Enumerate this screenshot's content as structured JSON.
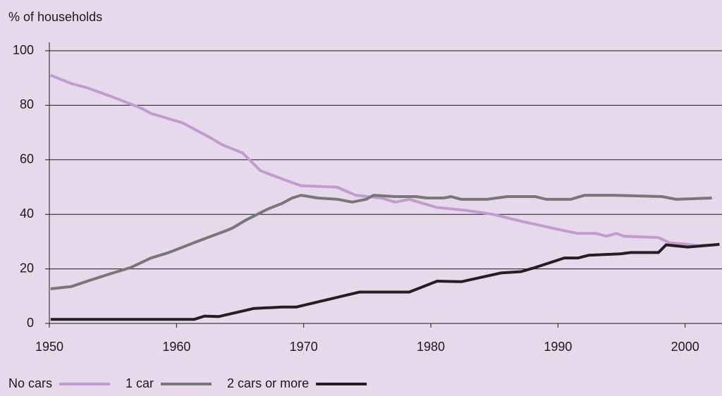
{
  "chart_data": {
    "type": "line",
    "y_axis_label": "% of households",
    "xlim": [
      1950,
      2002.9
    ],
    "xticks": [
      1950,
      1960,
      1970,
      1980,
      1990,
      2000
    ],
    "ylim": [
      0,
      100
    ],
    "yticks": [
      0,
      20,
      40,
      60,
      80,
      100
    ],
    "grid": true,
    "legend": "bottom-left",
    "series": [
      {
        "name": "No cars",
        "color": "#c39bd1",
        "x": [
          1950.1,
          1951.7,
          1952.9,
          1955,
          1957.2,
          1958,
          1960.5,
          1962.7,
          1963.6,
          1965.2,
          1966.6,
          1968.3,
          1969.8,
          1972.6,
          1974.1,
          1976.1,
          1977.2,
          1978.3,
          1979.4,
          1980.5,
          1982.7,
          1984.9,
          1987.1,
          1990.5,
          1991.6,
          1993,
          1993.8,
          1994.6,
          1995.2,
          1997.9,
          1998.8,
          2000.2,
          2001,
          2002.7
        ],
        "values": [
          91,
          88,
          86.5,
          83,
          79,
          77,
          73.5,
          68,
          65.5,
          62.5,
          56,
          53,
          50.5,
          50,
          47,
          46,
          44.5,
          45.5,
          44,
          42.5,
          41.5,
          40,
          37.5,
          34,
          33,
          33,
          32,
          33,
          32,
          31.5,
          29.5,
          29,
          28.5,
          29
        ]
      },
      {
        "name": "1 car",
        "color": "#777777",
        "x": [
          1950.1,
          1951.7,
          1953.3,
          1955,
          1956.4,
          1958,
          1959.4,
          1961.6,
          1963.9,
          1964.4,
          1965.5,
          1967.2,
          1968.3,
          1969.1,
          1969.8,
          1971.1,
          1972.7,
          1973.8,
          1974.9,
          1975.5,
          1977.2,
          1978.8,
          1979.7,
          1981,
          1981.6,
          1982.4,
          1984.4,
          1986,
          1988.2,
          1989.1,
          1991,
          1992.1,
          1994.3,
          1998.2,
          1999.3,
          2002.1
        ],
        "values": [
          12.7,
          13.5,
          16,
          18.5,
          20.5,
          24,
          26,
          30,
          34,
          35,
          38,
          42,
          44,
          46,
          47,
          46,
          45.5,
          44.5,
          45.5,
          47,
          46.5,
          46.5,
          46,
          46,
          46.5,
          45.5,
          45.5,
          46.5,
          46.5,
          45.5,
          45.5,
          47,
          47,
          46.5,
          45.5,
          46
        ]
      },
      {
        "name": "2 cars or more",
        "color": "#231f20",
        "x": [
          1950.1,
          1961.4,
          1962.2,
          1963.3,
          1966.1,
          1968.3,
          1969.4,
          1974.4,
          1978.3,
          1980.5,
          1982.4,
          1985.5,
          1987.1,
          1988.2,
          1990.5,
          1991.6,
          1992.4,
          1994.9,
          1995.7,
          1997.9,
          1998.5,
          2000.2,
          2002.7
        ],
        "values": [
          1.5,
          1.5,
          2.7,
          2.5,
          5.5,
          6,
          6,
          11.5,
          11.5,
          15.5,
          15.3,
          18.5,
          19,
          20.5,
          24,
          24,
          25,
          25.5,
          26,
          26,
          28.8,
          28,
          29
        ]
      }
    ]
  }
}
